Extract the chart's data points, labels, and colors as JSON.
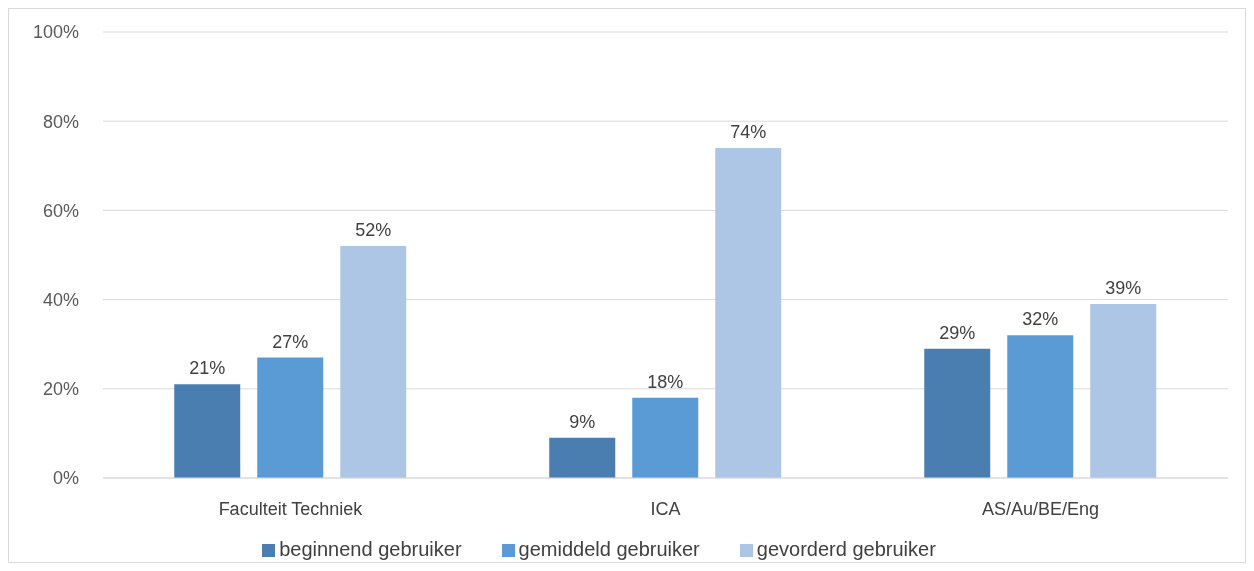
{
  "chart_data": {
    "type": "bar",
    "categories": [
      "Faculteit Techniek",
      "ICA",
      "AS/Au/BE/Eng"
    ],
    "series": [
      {
        "name": "beginnend gebruiker",
        "color": "#4a7eb0",
        "values": [
          21,
          9,
          29
        ],
        "value_labels": [
          "21%",
          "9%",
          "29%"
        ]
      },
      {
        "name": "gemiddeld gebruiker",
        "color": "#5b9bd5",
        "values": [
          27,
          18,
          32
        ],
        "value_labels": [
          "27%",
          "18%",
          "32%"
        ]
      },
      {
        "name": "gevorderd gebruiker",
        "color": "#adc6e5",
        "values": [
          52,
          74,
          39
        ],
        "value_labels": [
          "52%",
          "74%",
          "39%"
        ]
      }
    ],
    "ylim": [
      0,
      100
    ],
    "yticks": [
      {
        "value": 0,
        "label": "0%"
      },
      {
        "value": 20,
        "label": "20%"
      },
      {
        "value": 40,
        "label": "40%"
      },
      {
        "value": 60,
        "label": "60%"
      },
      {
        "value": 80,
        "label": "80%"
      },
      {
        "value": 100,
        "label": "100%"
      }
    ],
    "grid": "y",
    "legend": "bottom"
  }
}
